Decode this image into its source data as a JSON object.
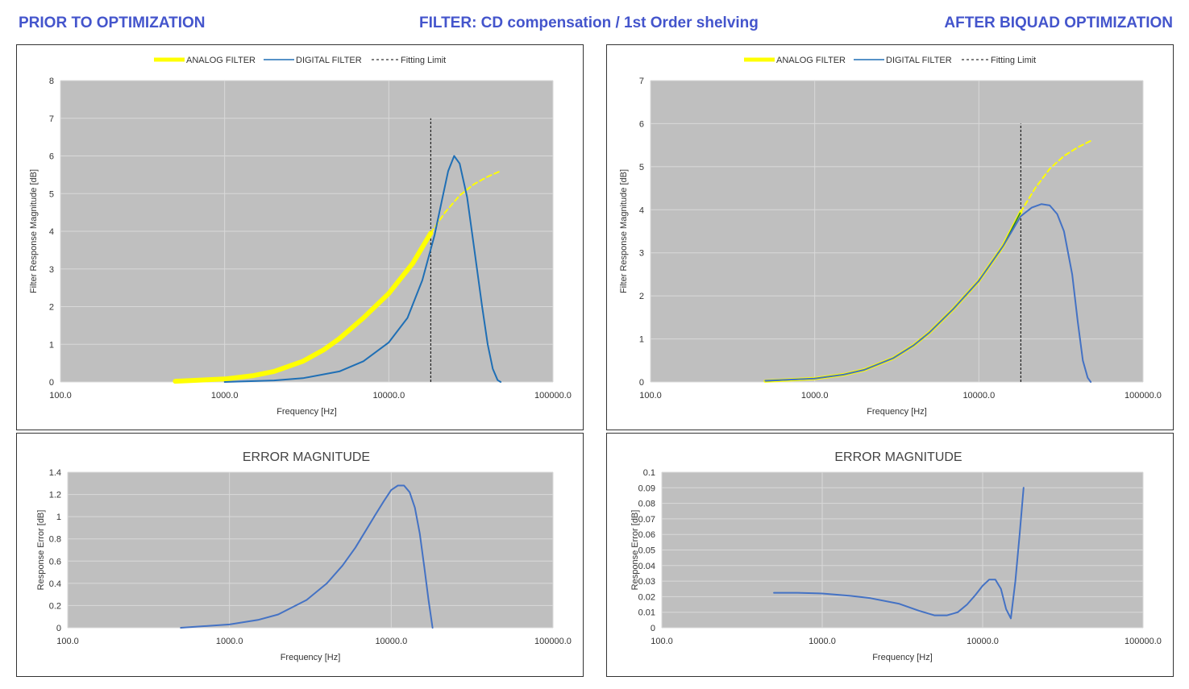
{
  "header": {
    "left": "PRIOR TO OPTIMIZATION",
    "center": "FILTER: CD compensation / 1st Order shelving",
    "right": "AFTER BIQUAD OPTIMIZATION"
  },
  "colors": {
    "analog": "#ffff00",
    "digital_prior": "#1f6fb5",
    "digital_after": "#4472c4",
    "analog_after_inner": "#1e7a3a",
    "fitting": "#000000",
    "plot_bg": "#bfbfbf",
    "grid": "#d9d9d9",
    "header": "#4455cc"
  },
  "chart_data": [
    {
      "id": "prior-response",
      "type": "line",
      "title": "",
      "xlabel": "Frequency [Hz]",
      "ylabel": "Filter Response Magnitude [dB]",
      "xscale": "log",
      "xlim": [
        100,
        100000
      ],
      "ylim": [
        0,
        8
      ],
      "xticks": [
        "100.0",
        "1000.0",
        "10000.0",
        "100000.0"
      ],
      "yticks": [
        "0",
        "1",
        "2",
        "3",
        "4",
        "5",
        "6",
        "7",
        "8"
      ],
      "legend": {
        "position": "top",
        "entries": [
          "ANALOG FILTER",
          "DIGITAL FILTER",
          "Fitting Limit"
        ]
      },
      "fitting_limit": {
        "x": 18000,
        "y": [
          0,
          7
        ]
      },
      "series": [
        {
          "name": "ANALOG FILTER",
          "style": "thick",
          "x": [
            500,
            1000,
            1500,
            2000,
            3000,
            4000,
            5000,
            7000,
            10000,
            14000,
            18000
          ],
          "y": [
            0.02,
            0.08,
            0.17,
            0.28,
            0.55,
            0.85,
            1.15,
            1.7,
            2.35,
            3.15,
            3.95
          ]
        },
        {
          "name": "ANALOG FILTER",
          "style": "dashed",
          "x": [
            18000,
            22000,
            27000,
            33000,
            40000,
            48000
          ],
          "y": [
            3.95,
            4.5,
            4.95,
            5.25,
            5.45,
            5.6
          ]
        },
        {
          "name": "DIGITAL FILTER",
          "style": "solid",
          "x": [
            1000,
            2000,
            3000,
            5000,
            7000,
            10000,
            13000,
            16000,
            19000,
            21000,
            23000,
            25000,
            27000,
            30000,
            33000,
            37000,
            40000,
            43000,
            46000,
            48000
          ],
          "y": [
            0.0,
            0.04,
            0.1,
            0.28,
            0.55,
            1.05,
            1.7,
            2.7,
            3.9,
            4.8,
            5.6,
            6.0,
            5.8,
            4.9,
            3.6,
            2.0,
            1.0,
            0.35,
            0.05,
            0.0
          ]
        }
      ]
    },
    {
      "id": "after-response",
      "type": "line",
      "title": "",
      "xlabel": "Frequency [Hz]",
      "ylabel": "Filter Response Magnitude [dB]",
      "xscale": "log",
      "xlim": [
        100,
        100000
      ],
      "ylim": [
        0,
        7
      ],
      "xticks": [
        "100.0",
        "1000.0",
        "10000.0",
        "100000.0"
      ],
      "yticks": [
        "0",
        "1",
        "2",
        "3",
        "4",
        "5",
        "6",
        "7"
      ],
      "legend": {
        "position": "top",
        "entries": [
          "ANALOG FILTER",
          "DIGITAL FILTER",
          "Fitting Limit"
        ]
      },
      "fitting_limit": {
        "x": 18000,
        "y": [
          0,
          6
        ]
      },
      "series": [
        {
          "name": "ANALOG FILTER",
          "style": "thick",
          "x": [
            500,
            1000,
            1500,
            2000,
            3000,
            4000,
            5000,
            7000,
            10000,
            14000,
            18000
          ],
          "y": [
            0.02,
            0.08,
            0.17,
            0.28,
            0.55,
            0.85,
            1.15,
            1.7,
            2.35,
            3.15,
            3.95
          ]
        },
        {
          "name": "ANALOG FILTER",
          "style": "dashed",
          "x": [
            18000,
            22000,
            27000,
            33000,
            40000,
            48000
          ],
          "y": [
            3.95,
            4.5,
            4.95,
            5.25,
            5.45,
            5.6
          ]
        },
        {
          "name": "DIGITAL FILTER",
          "style": "solid",
          "x": [
            500,
            1000,
            1500,
            2000,
            3000,
            4000,
            5000,
            7000,
            10000,
            14000,
            18000,
            21000,
            24000,
            27000,
            30000,
            33000,
            37000,
            40000,
            43000,
            46000,
            48000
          ],
          "y": [
            0.03,
            0.08,
            0.17,
            0.28,
            0.55,
            0.85,
            1.15,
            1.7,
            2.35,
            3.15,
            3.85,
            4.05,
            4.13,
            4.1,
            3.9,
            3.5,
            2.5,
            1.4,
            0.5,
            0.1,
            0.0
          ]
        }
      ]
    },
    {
      "id": "prior-error",
      "type": "line",
      "title": "ERROR MAGNITUDE",
      "xlabel": "Frequency [Hz]",
      "ylabel": "Response Error [dB]",
      "xscale": "log",
      "xlim": [
        100,
        100000
      ],
      "ylim": [
        0,
        1.4
      ],
      "xticks": [
        "100.0",
        "1000.0",
        "10000.0",
        "100000.0"
      ],
      "yticks": [
        "0",
        "0.2",
        "0.4",
        "0.6",
        "0.8",
        "1",
        "1.2",
        "1.4"
      ],
      "series": [
        {
          "name": "",
          "x": [
            500,
            1000,
            1500,
            2000,
            3000,
            4000,
            5000,
            6000,
            7000,
            8000,
            9000,
            10000,
            11000,
            12000,
            13000,
            14000,
            15000,
            16000,
            17000,
            18000
          ],
          "y": [
            0.0,
            0.03,
            0.07,
            0.12,
            0.25,
            0.4,
            0.56,
            0.72,
            0.88,
            1.02,
            1.14,
            1.24,
            1.28,
            1.28,
            1.22,
            1.08,
            0.85,
            0.55,
            0.25,
            0.0
          ]
        }
      ]
    },
    {
      "id": "after-error",
      "type": "line",
      "title": "ERROR MAGNITUDE",
      "xlabel": "Frequency [Hz]",
      "ylabel": "Response Error [dB]",
      "xscale": "log",
      "xlim": [
        100,
        100000
      ],
      "ylim": [
        0,
        0.1
      ],
      "xticks": [
        "100.0",
        "1000.0",
        "10000.0",
        "100000.0"
      ],
      "yticks": [
        "0",
        "0.01",
        "0.02",
        "0.03",
        "0.04",
        "0.05",
        "0.06",
        "0.07",
        "0.08",
        "0.09",
        "0.1"
      ],
      "series": [
        {
          "name": "",
          "x": [
            500,
            700,
            1000,
            1500,
            2000,
            3000,
            4000,
            5000,
            6000,
            7000,
            8000,
            9000,
            10000,
            11000,
            12000,
            13000,
            14000,
            15000,
            16000,
            17000,
            18000
          ],
          "y": [
            0.0225,
            0.0225,
            0.022,
            0.0205,
            0.019,
            0.0155,
            0.011,
            0.008,
            0.008,
            0.01,
            0.015,
            0.021,
            0.027,
            0.031,
            0.031,
            0.025,
            0.012,
            0.006,
            0.03,
            0.06,
            0.09
          ]
        }
      ]
    }
  ]
}
